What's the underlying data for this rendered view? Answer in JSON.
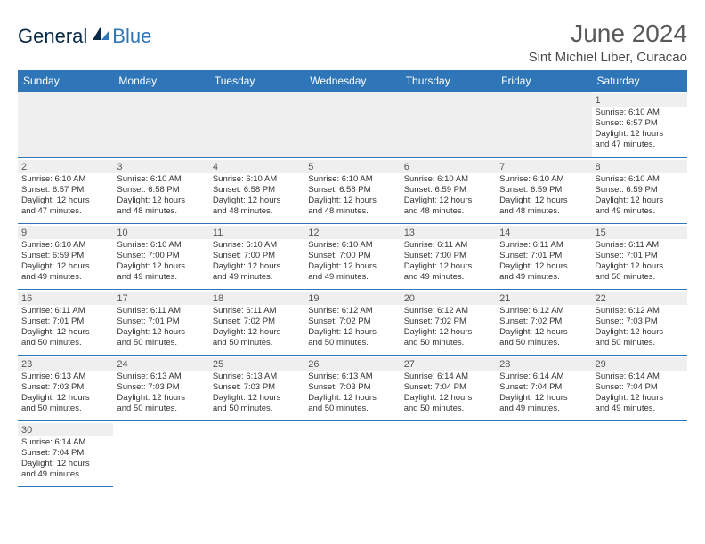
{
  "brand": {
    "general": "General",
    "blue": "Blue"
  },
  "header": {
    "month_title": "June 2024",
    "location": "Sint Michiel Liber, Curacao"
  },
  "colors": {
    "header_bg": "#2f76b8",
    "header_text": "#ffffff",
    "cell_border": "#2f76b8",
    "daynum_bg": "#efefef",
    "text": "#333333"
  },
  "weekdays": [
    "Sunday",
    "Monday",
    "Tuesday",
    "Wednesday",
    "Thursday",
    "Friday",
    "Saturday"
  ],
  "grid": {
    "rows": 6,
    "cols": 7,
    "cells": [
      [
        null,
        null,
        null,
        null,
        null,
        null,
        {
          "n": "1",
          "sr": "6:10 AM",
          "ss": "6:57 PM",
          "dl": "12 hours and 47 minutes."
        }
      ],
      [
        {
          "n": "2",
          "sr": "6:10 AM",
          "ss": "6:57 PM",
          "dl": "12 hours and 47 minutes."
        },
        {
          "n": "3",
          "sr": "6:10 AM",
          "ss": "6:58 PM",
          "dl": "12 hours and 48 minutes."
        },
        {
          "n": "4",
          "sr": "6:10 AM",
          "ss": "6:58 PM",
          "dl": "12 hours and 48 minutes."
        },
        {
          "n": "5",
          "sr": "6:10 AM",
          "ss": "6:58 PM",
          "dl": "12 hours and 48 minutes."
        },
        {
          "n": "6",
          "sr": "6:10 AM",
          "ss": "6:59 PM",
          "dl": "12 hours and 48 minutes."
        },
        {
          "n": "7",
          "sr": "6:10 AM",
          "ss": "6:59 PM",
          "dl": "12 hours and 48 minutes."
        },
        {
          "n": "8",
          "sr": "6:10 AM",
          "ss": "6:59 PM",
          "dl": "12 hours and 49 minutes."
        }
      ],
      [
        {
          "n": "9",
          "sr": "6:10 AM",
          "ss": "6:59 PM",
          "dl": "12 hours and 49 minutes."
        },
        {
          "n": "10",
          "sr": "6:10 AM",
          "ss": "7:00 PM",
          "dl": "12 hours and 49 minutes."
        },
        {
          "n": "11",
          "sr": "6:10 AM",
          "ss": "7:00 PM",
          "dl": "12 hours and 49 minutes."
        },
        {
          "n": "12",
          "sr": "6:10 AM",
          "ss": "7:00 PM",
          "dl": "12 hours and 49 minutes."
        },
        {
          "n": "13",
          "sr": "6:11 AM",
          "ss": "7:00 PM",
          "dl": "12 hours and 49 minutes."
        },
        {
          "n": "14",
          "sr": "6:11 AM",
          "ss": "7:01 PM",
          "dl": "12 hours and 49 minutes."
        },
        {
          "n": "15",
          "sr": "6:11 AM",
          "ss": "7:01 PM",
          "dl": "12 hours and 50 minutes."
        }
      ],
      [
        {
          "n": "16",
          "sr": "6:11 AM",
          "ss": "7:01 PM",
          "dl": "12 hours and 50 minutes."
        },
        {
          "n": "17",
          "sr": "6:11 AM",
          "ss": "7:01 PM",
          "dl": "12 hours and 50 minutes."
        },
        {
          "n": "18",
          "sr": "6:11 AM",
          "ss": "7:02 PM",
          "dl": "12 hours and 50 minutes."
        },
        {
          "n": "19",
          "sr": "6:12 AM",
          "ss": "7:02 PM",
          "dl": "12 hours and 50 minutes."
        },
        {
          "n": "20",
          "sr": "6:12 AM",
          "ss": "7:02 PM",
          "dl": "12 hours and 50 minutes."
        },
        {
          "n": "21",
          "sr": "6:12 AM",
          "ss": "7:02 PM",
          "dl": "12 hours and 50 minutes."
        },
        {
          "n": "22",
          "sr": "6:12 AM",
          "ss": "7:03 PM",
          "dl": "12 hours and 50 minutes."
        }
      ],
      [
        {
          "n": "23",
          "sr": "6:13 AM",
          "ss": "7:03 PM",
          "dl": "12 hours and 50 minutes."
        },
        {
          "n": "24",
          "sr": "6:13 AM",
          "ss": "7:03 PM",
          "dl": "12 hours and 50 minutes."
        },
        {
          "n": "25",
          "sr": "6:13 AM",
          "ss": "7:03 PM",
          "dl": "12 hours and 50 minutes."
        },
        {
          "n": "26",
          "sr": "6:13 AM",
          "ss": "7:03 PM",
          "dl": "12 hours and 50 minutes."
        },
        {
          "n": "27",
          "sr": "6:14 AM",
          "ss": "7:04 PM",
          "dl": "12 hours and 50 minutes."
        },
        {
          "n": "28",
          "sr": "6:14 AM",
          "ss": "7:04 PM",
          "dl": "12 hours and 49 minutes."
        },
        {
          "n": "29",
          "sr": "6:14 AM",
          "ss": "7:04 PM",
          "dl": "12 hours and 49 minutes."
        }
      ],
      [
        {
          "n": "30",
          "sr": "6:14 AM",
          "ss": "7:04 PM",
          "dl": "12 hours and 49 minutes."
        },
        null,
        null,
        null,
        null,
        null,
        null
      ]
    ]
  },
  "labels": {
    "sunrise": "Sunrise:",
    "sunset": "Sunset:",
    "daylight": "Daylight:"
  }
}
